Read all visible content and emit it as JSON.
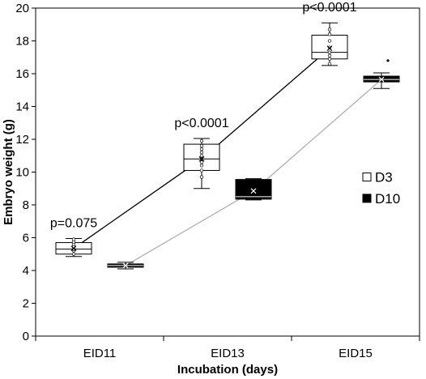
{
  "chart_data": {
    "type": "box",
    "xlabel": "Incubation (days)",
    "ylabel": "Embryo weight (g)",
    "ylim": [
      0,
      20
    ],
    "yticks": [
      0,
      2,
      4,
      6,
      8,
      10,
      12,
      14,
      16,
      18,
      20
    ],
    "categories": [
      "EID11",
      "EID13",
      "EID15"
    ],
    "annotations": [
      "p=0.075",
      "p<0.0001",
      "p<0.0001"
    ],
    "legend": {
      "position": "right",
      "entries": [
        "D3",
        "D10"
      ]
    },
    "series": [
      {
        "name": "D3",
        "fill": "#ffffff",
        "line_color": "#000000",
        "boxes": [
          {
            "category": "EID11",
            "min": 4.85,
            "q1": 5.0,
            "median": 5.3,
            "q3": 5.7,
            "max": 5.95,
            "mean": 5.35,
            "points": [
              5.0,
              5.2,
              5.3,
              5.45,
              5.6,
              5.75,
              5.9
            ]
          },
          {
            "category": "EID13",
            "min": 9.0,
            "q1": 10.1,
            "median": 10.8,
            "q3": 11.7,
            "max": 12.05,
            "mean": 10.8,
            "points": [
              9.7,
              10.1,
              10.4,
              10.6,
              10.8,
              11.0,
              11.2,
              11.4,
              11.6,
              11.9
            ]
          },
          {
            "category": "EID15",
            "min": 16.5,
            "q1": 16.9,
            "median": 17.3,
            "q3": 18.35,
            "max": 19.1,
            "mean": 17.55,
            "points": [
              16.6,
              16.9,
              17.1,
              17.3,
              17.6,
              18.0,
              18.4,
              18.7
            ]
          }
        ]
      },
      {
        "name": "D10",
        "fill": "#000000",
        "line_color": "#b0b0b0",
        "boxes": [
          {
            "category": "EID11",
            "min": 4.1,
            "q1": 4.2,
            "median": 4.3,
            "q3": 4.4,
            "max": 4.5,
            "mean": 4.3,
            "points": []
          },
          {
            "category": "EID13",
            "min": 8.3,
            "q1": 8.35,
            "median": 8.5,
            "q3": 9.55,
            "max": 9.6,
            "mean": 8.85,
            "points": []
          },
          {
            "category": "EID15",
            "min": 15.1,
            "q1": 15.5,
            "median": 15.65,
            "q3": 15.85,
            "max": 16.05,
            "mean": 15.65,
            "points": [],
            "outliers": [
              16.8
            ]
          }
        ]
      }
    ]
  }
}
